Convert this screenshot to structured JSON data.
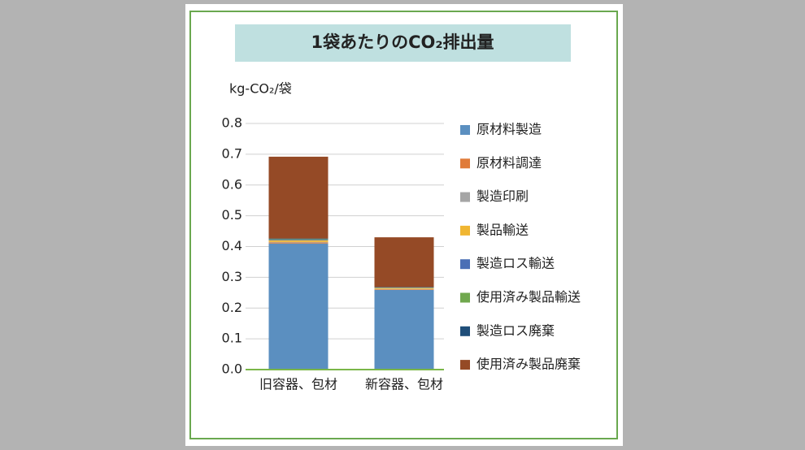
{
  "chart_data": {
    "type": "stacked_bar",
    "title": "1袋あたりのCO₂排出量",
    "y_label": "kg-CO₂/袋",
    "categories": [
      "旧容器、包材",
      "新容器、包材"
    ],
    "series": [
      {
        "name": "原材料製造",
        "color": "#5b8fc0",
        "values": [
          0.41,
          0.259
        ]
      },
      {
        "name": "原材料調達",
        "color": "#e07b39",
        "values": [
          0.003,
          0.002
        ]
      },
      {
        "name": "製造印刷",
        "color": "#a5a5a5",
        "values": [
          0.002,
          0.001
        ]
      },
      {
        "name": "製品輸送",
        "color": "#f0b632",
        "values": [
          0.005,
          0.003
        ]
      },
      {
        "name": "製造ロス輸送",
        "color": "#4a6fb5",
        "values": [
          0.002,
          0.001
        ]
      },
      {
        "name": "使用済み製品輸送",
        "color": "#70a84e",
        "values": [
          0.002,
          0.001
        ]
      },
      {
        "name": "製造ロス廃棄",
        "color": "#1f4e79",
        "values": [
          0.002,
          0.001
        ]
      },
      {
        "name": "使用済み製品廃棄",
        "color": "#954a26",
        "values": [
          0.266,
          0.162
        ]
      }
    ],
    "ylim": [
      0,
      0.8
    ],
    "yticks": [
      {
        "value": 0,
        "label": "0.0"
      },
      0.1,
      0.2,
      0.3,
      0.4,
      0.5,
      0.6,
      0.7,
      0.8
    ],
    "grid": true,
    "legend": "right"
  }
}
